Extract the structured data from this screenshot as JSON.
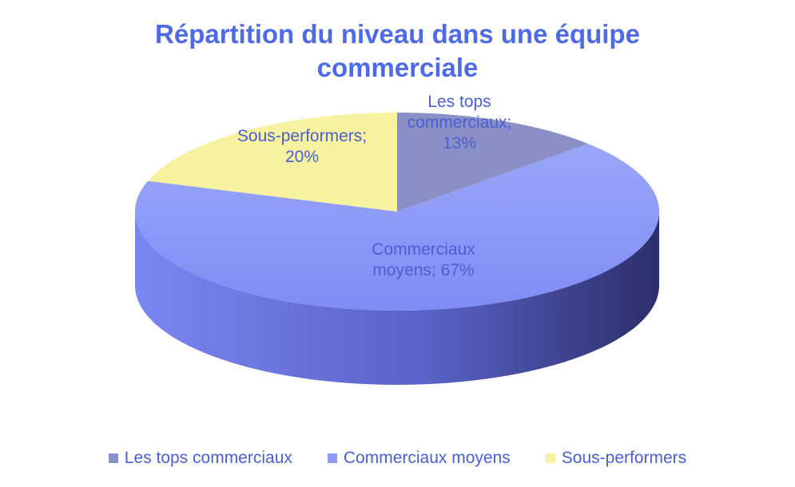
{
  "chart_data": {
    "type": "pie",
    "title": "Répartition du niveau dans une équipe\ncommerciale",
    "slices": [
      {
        "label": "Les tops commerciaux",
        "value": 13,
        "data_label": [
          "Les tops",
          "commerciaux;",
          "13%"
        ],
        "color": "#8a8fc6"
      },
      {
        "label": "Commerciaux moyens",
        "value": 67,
        "data_label": [
          "Commerciaux",
          "moyens; 67%"
        ],
        "color": "#8f9bf7"
      },
      {
        "label": "Sous-performers",
        "value": 20,
        "data_label": [
          "Sous-performers;",
          "20%"
        ],
        "color": "#f7f2a0"
      }
    ],
    "legend": {
      "position": "bottom",
      "items": [
        "Les tops commerciaux",
        "Commerciaux moyens",
        "Sous-performers"
      ]
    },
    "text_color": "#4a5fd0",
    "title_color": "#4f6ae6"
  }
}
